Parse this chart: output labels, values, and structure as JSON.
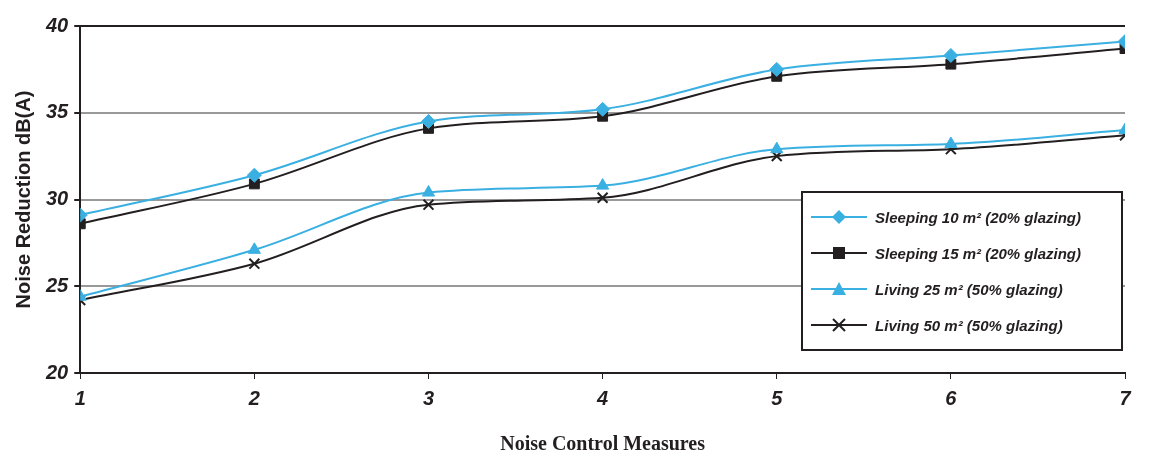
{
  "chart_data": {
    "type": "line",
    "xlabel": "Noise Control Measures",
    "ylabel": "Noise Reduction dB(A)",
    "x": [
      1,
      2,
      3,
      4,
      5,
      6,
      7
    ],
    "xlim": [
      1,
      7
    ],
    "xticks": [
      1,
      2,
      3,
      4,
      5,
      6,
      7
    ],
    "ylim": [
      20,
      40
    ],
    "yticks": [
      20,
      25,
      30,
      35,
      40
    ],
    "grid": "y",
    "legend": "bottom right",
    "series": [
      {
        "name": "Sleeping 10 m² (20% glazing)",
        "color": "#3ab0e2",
        "marker": "diamond",
        "values": [
          29.1,
          31.4,
          34.5,
          35.2,
          37.5,
          38.3,
          39.1
        ]
      },
      {
        "name": "Sleeping 15 m² (20% glazing)",
        "color": "#231f20",
        "marker": "square",
        "values": [
          28.6,
          30.9,
          34.1,
          34.8,
          37.1,
          37.8,
          38.7
        ]
      },
      {
        "name": "Living 25 m² (50% glazing)",
        "color": "#3ab0e2",
        "marker": "triangle",
        "values": [
          24.4,
          27.1,
          30.4,
          30.8,
          32.9,
          33.2,
          34.0
        ]
      },
      {
        "name": "Living 50 m² (50% glazing)",
        "color": "#231f20",
        "marker": "cross",
        "values": [
          24.2,
          26.3,
          29.7,
          30.1,
          32.5,
          32.9,
          33.7
        ]
      }
    ]
  }
}
